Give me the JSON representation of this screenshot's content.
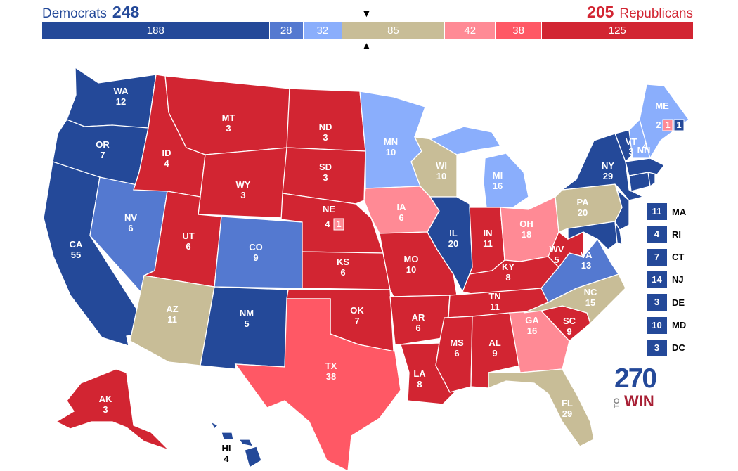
{
  "header": {
    "dem_label": "Democrats",
    "dem_total": "248",
    "rep_label": "Republicans",
    "rep_total": "205",
    "marker_top": "▼",
    "marker_bottom": "▲"
  },
  "bar_segments": [
    {
      "value": 188,
      "label": "188",
      "color": "#244999"
    },
    {
      "value": 28,
      "label": "28",
      "color": "#5479d0"
    },
    {
      "value": 32,
      "label": "32",
      "color": "#8aaefc"
    },
    {
      "value": 85,
      "label": "85",
      "color": "#c8bd97"
    },
    {
      "value": 42,
      "label": "42",
      "color": "#ff8a95"
    },
    {
      "value": 38,
      "label": "38",
      "color": "#ff5865"
    },
    {
      "value": 125,
      "label": "125",
      "color": "#d22532"
    }
  ],
  "colors": {
    "solid_d": "#244999",
    "likely_d": "#5479d0",
    "lean_d": "#8aaefc",
    "tossup": "#c8bd97",
    "lean_r": "#ff8a95",
    "likely_r": "#ff5865",
    "solid_r": "#d22532"
  },
  "states": {
    "WA": {
      "abbr": "WA",
      "ev": "12"
    },
    "OR": {
      "abbr": "OR",
      "ev": "7"
    },
    "CA": {
      "abbr": "CA",
      "ev": "55"
    },
    "NV": {
      "abbr": "NV",
      "ev": "6"
    },
    "ID": {
      "abbr": "ID",
      "ev": "4"
    },
    "MT": {
      "abbr": "MT",
      "ev": "3"
    },
    "WY": {
      "abbr": "WY",
      "ev": "3"
    },
    "UT": {
      "abbr": "UT",
      "ev": "6"
    },
    "CO": {
      "abbr": "CO",
      "ev": "9"
    },
    "AZ": {
      "abbr": "AZ",
      "ev": "11"
    },
    "NM": {
      "abbr": "NM",
      "ev": "5"
    },
    "ND": {
      "abbr": "ND",
      "ev": "3"
    },
    "SD": {
      "abbr": "SD",
      "ev": "3"
    },
    "NE": {
      "abbr": "NE",
      "ev": "4",
      "extra": "1"
    },
    "KS": {
      "abbr": "KS",
      "ev": "6"
    },
    "OK": {
      "abbr": "OK",
      "ev": "7"
    },
    "TX": {
      "abbr": "TX",
      "ev": "38"
    },
    "MN": {
      "abbr": "MN",
      "ev": "10"
    },
    "IA": {
      "abbr": "IA",
      "ev": "6"
    },
    "MO": {
      "abbr": "MO",
      "ev": "10"
    },
    "AR": {
      "abbr": "AR",
      "ev": "6"
    },
    "LA": {
      "abbr": "LA",
      "ev": "8"
    },
    "WI": {
      "abbr": "WI",
      "ev": "10"
    },
    "IL": {
      "abbr": "IL",
      "ev": "20"
    },
    "MI": {
      "abbr": "MI",
      "ev": "16"
    },
    "IN": {
      "abbr": "IN",
      "ev": "11"
    },
    "OH": {
      "abbr": "OH",
      "ev": "18"
    },
    "KY": {
      "abbr": "KY",
      "ev": "8"
    },
    "TN": {
      "abbr": "TN",
      "ev": "11"
    },
    "MS": {
      "abbr": "MS",
      "ev": "6"
    },
    "AL": {
      "abbr": "AL",
      "ev": "9"
    },
    "GA": {
      "abbr": "GA",
      "ev": "16"
    },
    "FL": {
      "abbr": "FL",
      "ev": "29"
    },
    "SC": {
      "abbr": "SC",
      "ev": "9"
    },
    "NC": {
      "abbr": "NC",
      "ev": "15"
    },
    "VA": {
      "abbr": "VA",
      "ev": "13"
    },
    "WV": {
      "abbr": "WV",
      "ev": "5"
    },
    "PA": {
      "abbr": "PA",
      "ev": "20"
    },
    "NY": {
      "abbr": "NY",
      "ev": "29"
    },
    "VT": {
      "abbr": "VT",
      "ev": "3"
    },
    "NH": {
      "abbr": "NH",
      "ev": "4"
    },
    "ME": {
      "abbr": "ME",
      "ev": "2",
      "cd2": "1",
      "cd1": "1"
    },
    "AK": {
      "abbr": "AK",
      "ev": "3"
    },
    "HI": {
      "abbr": "HI",
      "ev": "4"
    }
  },
  "small_states": [
    {
      "abbr": "MA",
      "ev": "11"
    },
    {
      "abbr": "RI",
      "ev": "4"
    },
    {
      "abbr": "CT",
      "ev": "7"
    },
    {
      "abbr": "NJ",
      "ev": "14"
    },
    {
      "abbr": "DE",
      "ev": "3"
    },
    {
      "abbr": "MD",
      "ev": "10"
    },
    {
      "abbr": "DC",
      "ev": "3"
    }
  ],
  "logo": {
    "number": "270",
    "to": "TO",
    "win": "WIN"
  }
}
